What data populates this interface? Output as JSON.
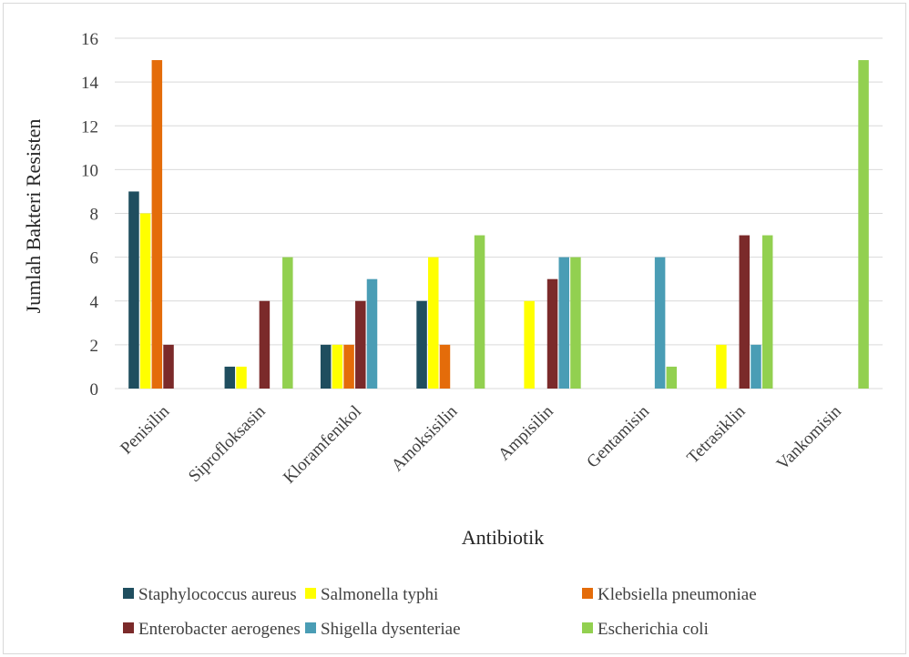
{
  "chart_data": {
    "type": "bar",
    "title": "",
    "xlabel": "Antibiotik",
    "ylabel": "Jumlah Bakteri Resisten",
    "ylim": [
      0,
      16
    ],
    "yticks": [
      0,
      2,
      4,
      6,
      8,
      10,
      12,
      14,
      16
    ],
    "grid": true,
    "legend_position": "bottom",
    "categories": [
      "Penisilin",
      "Siprofloksasin",
      "Kloramfenikol",
      "Amoksisilin",
      "Ampisilin",
      "Gentamisin",
      "Tetrasiklin",
      "Vankomisin"
    ],
    "series": [
      {
        "name": "Staphylococcus aureus",
        "color": "#1f4e5f",
        "values": [
          9,
          1,
          2,
          4,
          0,
          0,
          0,
          0
        ]
      },
      {
        "name": "Salmonella typhi",
        "color": "#ffff00",
        "values": [
          8,
          1,
          2,
          6,
          4,
          0,
          2,
          0
        ]
      },
      {
        "name": "Klebsiella pneumoniae",
        "color": "#e46c0a",
        "values": [
          15,
          0,
          2,
          2,
          0,
          0,
          0,
          0
        ]
      },
      {
        "name": "Enterobacter aerogenes",
        "color": "#7b2a2a",
        "values": [
          2,
          4,
          4,
          0,
          5,
          0,
          7,
          0
        ]
      },
      {
        "name": "Shigella dysenteriae",
        "color": "#4a9db5",
        "values": [
          0,
          0,
          5,
          0,
          6,
          6,
          2,
          0
        ]
      },
      {
        "name": "Escherichia coli",
        "color": "#92d050",
        "values": [
          0,
          6,
          0,
          7,
          6,
          1,
          7,
          15
        ]
      }
    ]
  }
}
